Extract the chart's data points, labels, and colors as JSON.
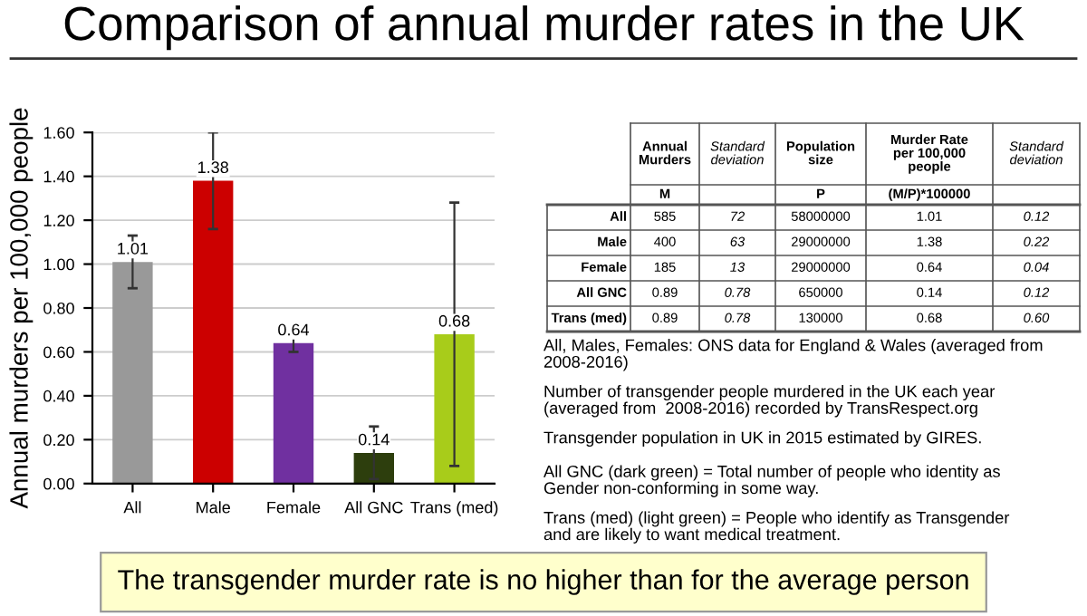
{
  "chart_data": {
    "type": "bar",
    "title": "Comparison of annual murder rates in the UK",
    "ylabel": "Annual murders per 100,000 people",
    "categories": [
      "All",
      "Male",
      "Female",
      "All GNC",
      "Trans (med)"
    ],
    "values": [
      1.01,
      1.38,
      0.64,
      0.14,
      0.68
    ],
    "errors": [
      0.12,
      0.22,
      0.04,
      0.12,
      0.6
    ],
    "colors": [
      "#999999",
      "#cc0000",
      "#7030a0",
      "#2d3e0d",
      "#a8cc1a"
    ],
    "data_labels": true,
    "ylim": [
      0,
      1.6
    ],
    "yticks": [
      {
        "value": 0,
        "label": "0.00"
      },
      {
        "value": 0.2,
        "label": "0.20"
      },
      {
        "value": 0.4,
        "label": "0.40"
      },
      {
        "value": 0.6,
        "label": "0.60"
      },
      {
        "value": 0.8,
        "label": "0.80"
      },
      {
        "value": 1.0,
        "label": "1.00"
      },
      {
        "value": 1.2,
        "label": "1.20"
      },
      {
        "value": 1.4,
        "label": "1.40"
      },
      {
        "value": 1.6,
        "label": "1.60"
      }
    ],
    "grid": "y",
    "legend": false,
    "annotations": [
      "Annual Murders",
      "Standard deviation",
      "Population size",
      "Murder Rate per 100,000 people",
      "Standard deviation",
      "M",
      "P",
      "(M/P)*100000",
      "All",
      "585",
      "72",
      "58000000",
      "1.01",
      "0.12",
      "Male",
      "400",
      "63",
      "29000000",
      "1.38",
      "0.22",
      "Female",
      "185",
      "13",
      "29000000",
      "0.64",
      "0.04",
      "All GNC",
      "0.89",
      "0.78",
      "650000",
      "0.14",
      "0.12",
      "Trans (med)",
      "0.89",
      "0.78",
      "130000",
      "0.68",
      "0.60",
      "All, Males, Females: ONS data for England & Wales (averaged from 2008-2016)",
      "Number of transgender people murdered in the UK each year (averaged from  2008-2016) recorded by TransRespect.org",
      "Transgender population in UK in 2015 estimated by GIRES.",
      "All GNC (dark green) = Total number of people who identity as Gender non-conforming in some way.",
      "Trans (med) (light green) = People who identify as Transgender and are likely to want medical treatment.",
      "The transgender murder rate is no higher than for the average person"
    ]
  }
}
